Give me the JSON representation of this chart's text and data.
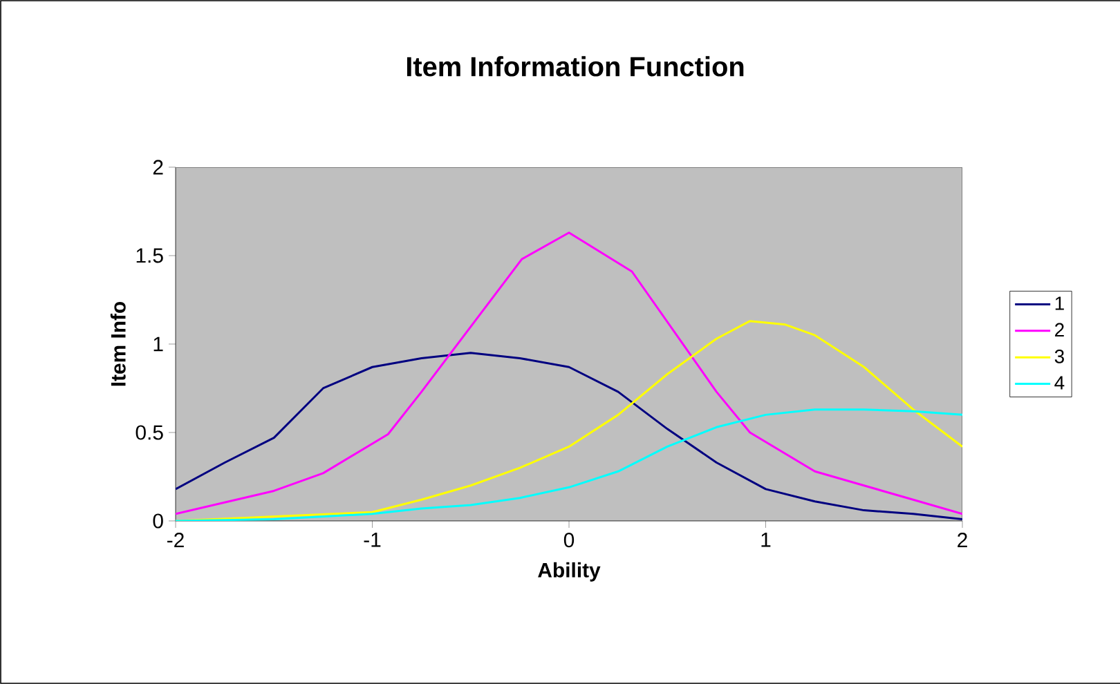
{
  "chart_data": {
    "type": "line",
    "title": "Item Information Function",
    "xlabel": "Ability",
    "ylabel": "Item Info",
    "xlim": [
      -2,
      2
    ],
    "xticks": [
      -2,
      -1,
      0,
      1,
      2
    ],
    "ylim": [
      0,
      2
    ],
    "yticks": [
      0,
      0.5,
      1,
      1.5,
      2
    ],
    "grid": false,
    "legend": "right",
    "marker": "none",
    "line_style": "solid",
    "series": [
      {
        "name": "1",
        "color": "#000080",
        "x": [
          -2,
          -1.75,
          -1.5,
          -1.25,
          -1,
          -0.75,
          -0.5,
          -0.25,
          0,
          0.25,
          0.5,
          0.75,
          1,
          1.25,
          1.5,
          1.75,
          2
        ],
        "values": [
          0.18,
          0.33,
          0.47,
          0.75,
          0.87,
          0.92,
          0.95,
          0.92,
          0.87,
          0.73,
          0.52,
          0.33,
          0.18,
          0.11,
          0.06,
          0.04,
          0.01
        ]
      },
      {
        "name": "2",
        "color": "#ff00ff",
        "x": [
          -2,
          -1.5,
          -1.25,
          -0.92,
          -0.75,
          -0.24,
          0,
          0.32,
          0.75,
          0.92,
          1.25,
          1.5,
          1.75,
          2
        ],
        "values": [
          0.04,
          0.17,
          0.27,
          0.49,
          0.73,
          1.48,
          1.63,
          1.41,
          0.73,
          0.5,
          0.28,
          0.2,
          0.12,
          0.04
        ]
      },
      {
        "name": "3",
        "color": "#ffff00",
        "x": [
          -2,
          -1,
          -0.75,
          -0.5,
          -0.25,
          0,
          0.25,
          0.5,
          0.75,
          0.92,
          1.1,
          1.25,
          1.5,
          1.75,
          2
        ],
        "values": [
          0,
          0.05,
          0.12,
          0.2,
          0.3,
          0.42,
          0.6,
          0.83,
          1.03,
          1.13,
          1.11,
          1.05,
          0.87,
          0.63,
          0.42
        ]
      },
      {
        "name": "4",
        "color": "#00ffff",
        "x": [
          -2,
          -1.5,
          -1,
          -0.75,
          -0.5,
          -0.25,
          0,
          0.25,
          0.5,
          0.75,
          1,
          1.25,
          1.5,
          1.75,
          2
        ],
        "values": [
          0,
          0.01,
          0.04,
          0.07,
          0.09,
          0.13,
          0.19,
          0.28,
          0.42,
          0.53,
          0.6,
          0.63,
          0.63,
          0.62,
          0.6
        ]
      }
    ]
  }
}
